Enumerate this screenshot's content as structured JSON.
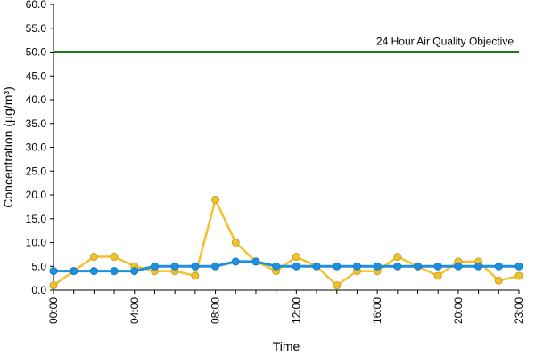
{
  "chart_data": {
    "type": "line",
    "xlabel": "Time",
    "ylabel": "Concentration (µg/m³)",
    "ylim": [
      0,
      60
    ],
    "y_ticks": [
      "0.0",
      "5.0",
      "10.0",
      "15.0",
      "20.0",
      "25.0",
      "30.0",
      "35.0",
      "40.0",
      "45.0",
      "50.0",
      "55.0",
      "60.0"
    ],
    "x_tick_labels": [
      "00:00",
      "04:00",
      "08:00",
      "12:00",
      "16:00",
      "20:00",
      "23:00"
    ],
    "x_tick_hours": [
      0,
      4,
      8,
      12,
      16,
      20,
      23
    ],
    "grid": false,
    "hours": [
      0,
      1,
      2,
      3,
      4,
      5,
      6,
      7,
      8,
      9,
      10,
      11,
      12,
      13,
      14,
      15,
      16,
      17,
      18,
      19,
      20,
      21,
      22,
      23
    ],
    "series": [
      {
        "color": "#f2c12e",
        "values": [
          1,
          4,
          7,
          7,
          5,
          4,
          4,
          3,
          19,
          10,
          6,
          4,
          7,
          5,
          1,
          4,
          4,
          7,
          5,
          3,
          6,
          6,
          2,
          3
        ]
      },
      {
        "color": "#1e90e0",
        "values": [
          4,
          4,
          4,
          4,
          4,
          5,
          5,
          5,
          5,
          6,
          6,
          5,
          5,
          5,
          5,
          5,
          5,
          5,
          5,
          5,
          5,
          5,
          5,
          5
        ]
      }
    ],
    "objective": {
      "label": "24 Hour Air Quality Objective",
      "value": 50,
      "color": "#1a7a1a"
    }
  }
}
